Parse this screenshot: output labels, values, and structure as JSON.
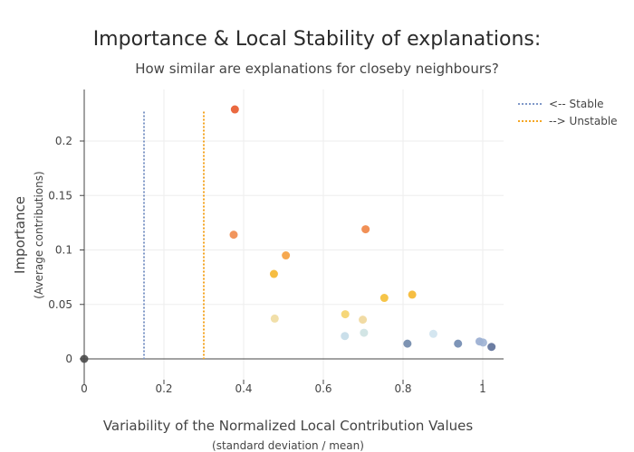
{
  "chart_data": {
    "type": "scatter",
    "title": "Importance & Local Stability of explanations:",
    "subtitle": "How similar are explanations for closeby neighbours?",
    "xlabel": "Variability of the Normalized Local Contribution Values",
    "xlabel_sub": "(standard deviation / mean)",
    "ylabel": "Importance",
    "ylabel_sub": "(Average contributions)",
    "xlim": [
      0,
      1.05
    ],
    "ylim": [
      -0.018,
      0.24
    ],
    "x_ticks": [
      {
        "value": 0,
        "label": "0"
      },
      {
        "value": 0.2,
        "label": "0.2"
      },
      {
        "value": 0.4,
        "label": "0.4"
      },
      {
        "value": 0.6,
        "label": "0.6"
      },
      {
        "value": 0.8,
        "label": "0.8"
      },
      {
        "value": 1,
        "label": "1"
      }
    ],
    "y_ticks": [
      {
        "value": 0,
        "label": "0"
      },
      {
        "value": 0.05,
        "label": "0.05"
      },
      {
        "value": 0.1,
        "label": "0.1"
      },
      {
        "value": 0.15,
        "label": "0.15"
      },
      {
        "value": 0.2,
        "label": "0.2"
      }
    ],
    "grid": true,
    "legend_position": "top-right",
    "reference_lines": [
      {
        "name": "<-- Stable",
        "x": 0.15,
        "y_top": 0.227,
        "color": "#7f98c8"
      },
      {
        "name": "--> Unstable",
        "x": 0.3,
        "y_top": 0.227,
        "color": "#f5a623"
      }
    ],
    "points": [
      {
        "x": 0.378,
        "y": 0.229,
        "color": "#e8592b"
      },
      {
        "x": 0.375,
        "y": 0.114,
        "color": "#f08a4b"
      },
      {
        "x": 0.706,
        "y": 0.119,
        "color": "#f08444"
      },
      {
        "x": 0.506,
        "y": 0.095,
        "color": "#f59e3c"
      },
      {
        "x": 0.476,
        "y": 0.078,
        "color": "#f5b62e"
      },
      {
        "x": 0.823,
        "y": 0.059,
        "color": "#f5b72d"
      },
      {
        "x": 0.753,
        "y": 0.056,
        "color": "#f5bf35"
      },
      {
        "x": 0.655,
        "y": 0.041,
        "color": "#f5d36a"
      },
      {
        "x": 0.478,
        "y": 0.037,
        "color": "#f0dca0"
      },
      {
        "x": 0.699,
        "y": 0.036,
        "color": "#efd79a"
      },
      {
        "x": 0.654,
        "y": 0.021,
        "color": "#c4dbe8"
      },
      {
        "x": 0.702,
        "y": 0.024,
        "color": "#cde2e2"
      },
      {
        "x": 0.876,
        "y": 0.023,
        "color": "#cfe3ee"
      },
      {
        "x": 0.811,
        "y": 0.014,
        "color": "#6f87aa"
      },
      {
        "x": 0.938,
        "y": 0.014,
        "color": "#7089b0"
      },
      {
        "x": 0.992,
        "y": 0.016,
        "color": "#98acd0"
      },
      {
        "x": 1.001,
        "y": 0.015,
        "color": "#9fb2d4"
      },
      {
        "x": 1.022,
        "y": 0.011,
        "color": "#5c6f98"
      },
      {
        "x": 0.0,
        "y": 0.0,
        "color": "#4a4a4a"
      }
    ]
  }
}
